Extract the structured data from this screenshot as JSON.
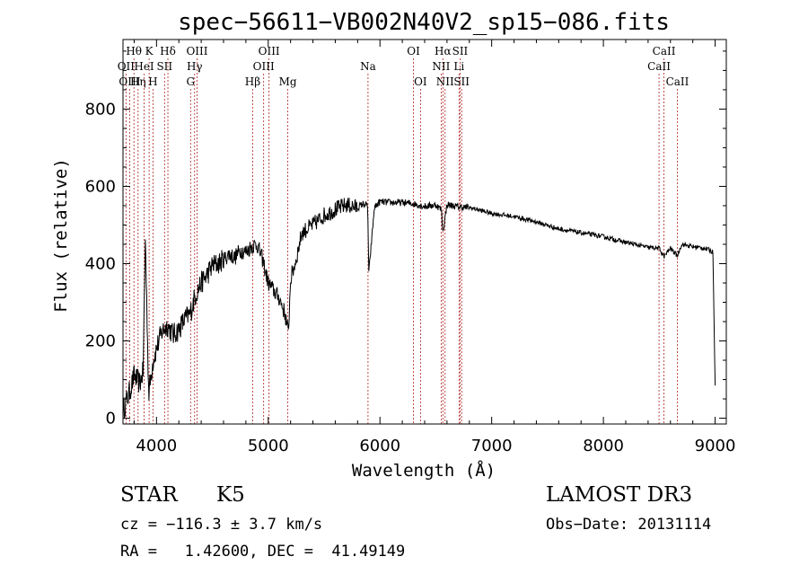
{
  "chart_data": {
    "type": "line",
    "title": "spec−56611−VB002N40V2_sp15−086.fits",
    "xlabel": "Wavelength (Å)",
    "ylabel": "Flux (relative)",
    "xlim": [
      3700,
      9100
    ],
    "ylim": [
      -15,
      980
    ],
    "xticks": [
      4000,
      5000,
      6000,
      7000,
      8000,
      9000
    ],
    "yticks": [
      0,
      200,
      400,
      600,
      800
    ],
    "grid": false,
    "spectrum": {
      "x": [
        3700,
        3750,
        3800,
        3850,
        3880,
        3900,
        3930,
        3950,
        3970,
        4000,
        4050,
        4100,
        4150,
        4200,
        4250,
        4300,
        4350,
        4400,
        4450,
        4500,
        4550,
        4600,
        4650,
        4700,
        4750,
        4800,
        4850,
        4900,
        4950,
        5000,
        5050,
        5100,
        5150,
        5180,
        5200,
        5250,
        5300,
        5400,
        5500,
        5600,
        5700,
        5800,
        5850,
        5890,
        5900,
        5950,
        6000,
        6100,
        6200,
        6300,
        6400,
        6500,
        6550,
        6563,
        6600,
        6700,
        6800,
        6900,
        7000,
        7200,
        7400,
        7600,
        7800,
        8000,
        8200,
        8400,
        8500,
        8542,
        8600,
        8662,
        8700,
        8800,
        8900,
        8950,
        8980,
        9000
      ],
      "y": [
        20,
        60,
        110,
        90,
        120,
        470,
        60,
        110,
        150,
        180,
        225,
        240,
        215,
        230,
        255,
        270,
        320,
        350,
        370,
        395,
        400,
        410,
        425,
        415,
        435,
        430,
        445,
        450,
        410,
        350,
        330,
        310,
        270,
        220,
        360,
        410,
        480,
        500,
        525,
        540,
        552,
        545,
        555,
        550,
        375,
        545,
        560,
        558,
        558,
        555,
        548,
        552,
        540,
        480,
        553,
        547,
        545,
        538,
        530,
        522,
        508,
        490,
        480,
        470,
        455,
        442,
        440,
        418,
        440,
        420,
        450,
        444,
        440,
        435,
        430,
        80
      ]
    },
    "lines": [
      {
        "name": "Hθ",
        "wave": 3798,
        "row": 1
      },
      {
        "name": "OII",
        "wave": 3727,
        "row": 2
      },
      {
        "name": "OIII",
        "wave": 3760,
        "row": 3
      },
      {
        "name": "Hη",
        "wave": 3835,
        "row": 3
      },
      {
        "name": "K",
        "wave": 3934,
        "row": 1
      },
      {
        "name": "H",
        "wave": 3968,
        "row": 3
      },
      {
        "name": "HeI",
        "wave": 3889,
        "row": 2
      },
      {
        "name": "SII",
        "wave": 4072,
        "row": 2
      },
      {
        "name": "Hδ",
        "wave": 4102,
        "row": 1
      },
      {
        "name": "OIII",
        "wave": 4363,
        "row": 1
      },
      {
        "name": "Hγ",
        "wave": 4341,
        "row": 2
      },
      {
        "name": "G",
        "wave": 4305,
        "row": 3
      },
      {
        "name": "OIII",
        "wave": 5007,
        "row": 1
      },
      {
        "name": "OIII",
        "wave": 4959,
        "row": 2
      },
      {
        "name": "Hβ",
        "wave": 4861,
        "row": 3
      },
      {
        "name": "Mg",
        "wave": 5175,
        "row": 3
      },
      {
        "name": "Na",
        "wave": 5893,
        "row": 2
      },
      {
        "name": "OI",
        "wave": 6300,
        "row": 1
      },
      {
        "name": "OI",
        "wave": 6363,
        "row": 3
      },
      {
        "name": "Hα",
        "wave": 6563,
        "row": 1
      },
      {
        "name": "NII",
        "wave": 6548,
        "row": 2
      },
      {
        "name": "NII",
        "wave": 6583,
        "row": 3
      },
      {
        "name": "SII",
        "wave": 6717,
        "row": 1
      },
      {
        "name": "Li",
        "wave": 6708,
        "row": 2
      },
      {
        "name": "SII",
        "wave": 6731,
        "row": 3
      },
      {
        "name": "CaII",
        "wave": 8542,
        "row": 1
      },
      {
        "name": "CaII",
        "wave": 8498,
        "row": 2
      },
      {
        "name": "CaII",
        "wave": 8662,
        "row": 3
      }
    ]
  },
  "info": {
    "class": "STAR",
    "subclass": "K5",
    "survey": "LAMOST DR3",
    "cz": "cz = −116.3 ± 3.7 km/s",
    "obs_date": "Obs−Date: 20131114",
    "coords": "RA =   1.42600, DEC =  41.49149"
  }
}
